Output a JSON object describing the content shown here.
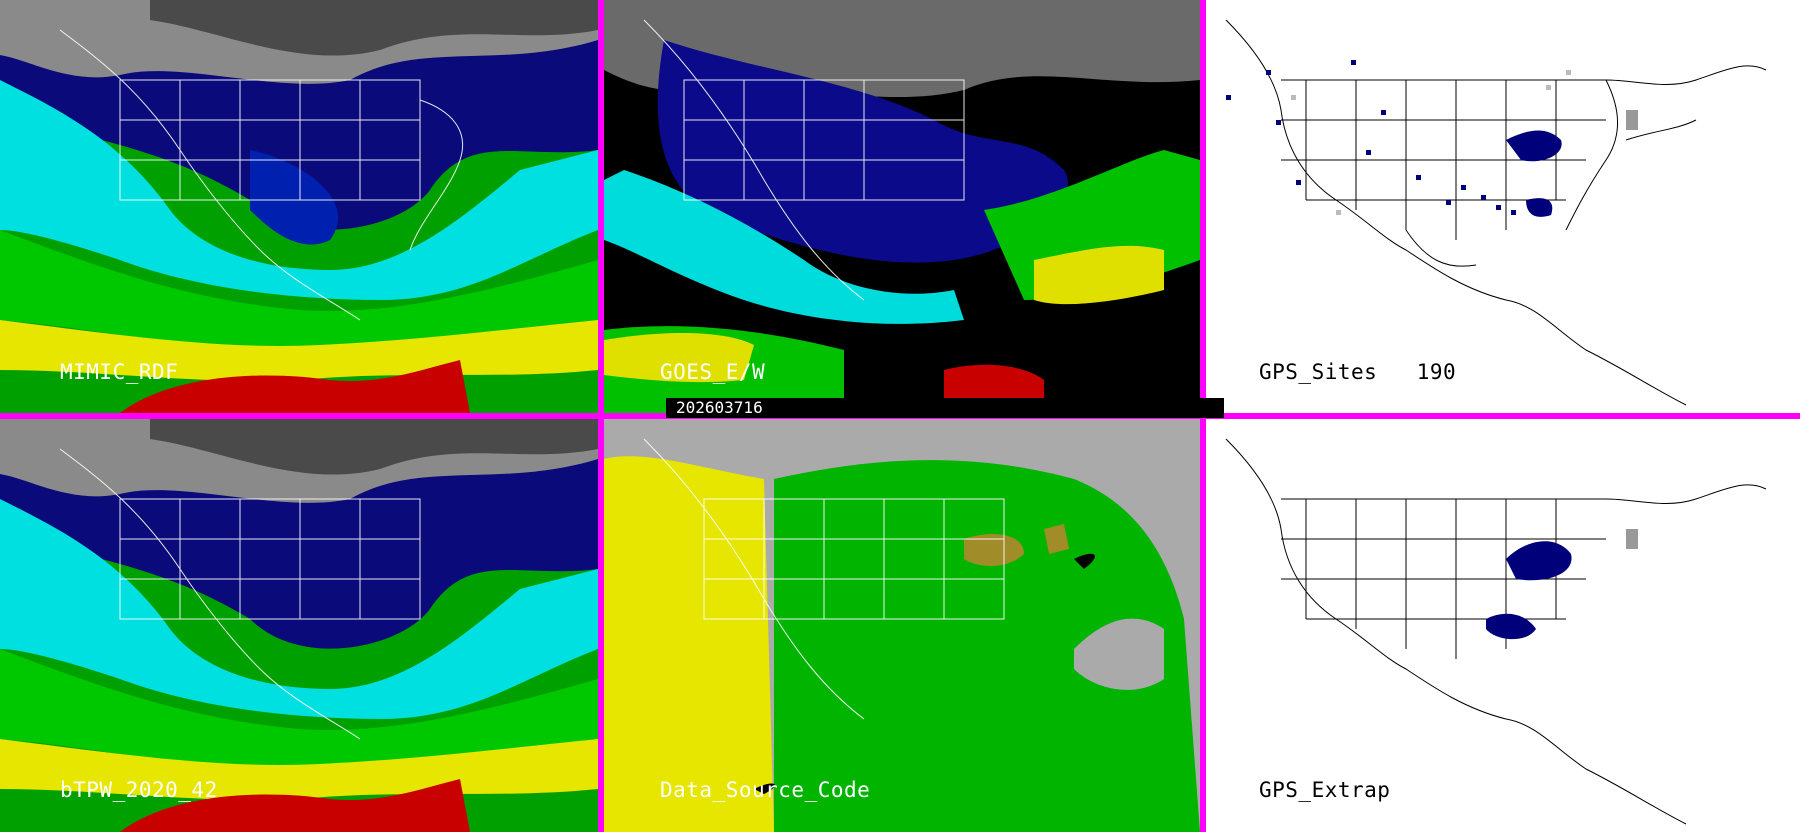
{
  "panels": [
    {
      "label": "MIMIC_RDF",
      "style": "tpw"
    },
    {
      "label": "GOES_E/W",
      "style": "goes"
    },
    {
      "label": "GPS_Sites   190",
      "style": "gps"
    },
    {
      "label": "bTPW_2020_42",
      "style": "tpw"
    },
    {
      "label": "Data_Source_Code",
      "style": "dsc"
    },
    {
      "label": "GPS_Extrap",
      "style": "extrap"
    }
  ],
  "timestamp": "202603716",
  "colors": {
    "divider": "#ff00ff",
    "tpw_low": "#00ffff",
    "tpw_mid": "#00cc00",
    "tpw_high": "#eeee00",
    "tpw_max": "#cc0000",
    "dry_blue": "#000a8c",
    "dsc_yellow": "#e6e600",
    "dsc_green": "#00b400",
    "dsc_olive": "#a08c28",
    "dsc_gray": "#aaaaaa"
  }
}
